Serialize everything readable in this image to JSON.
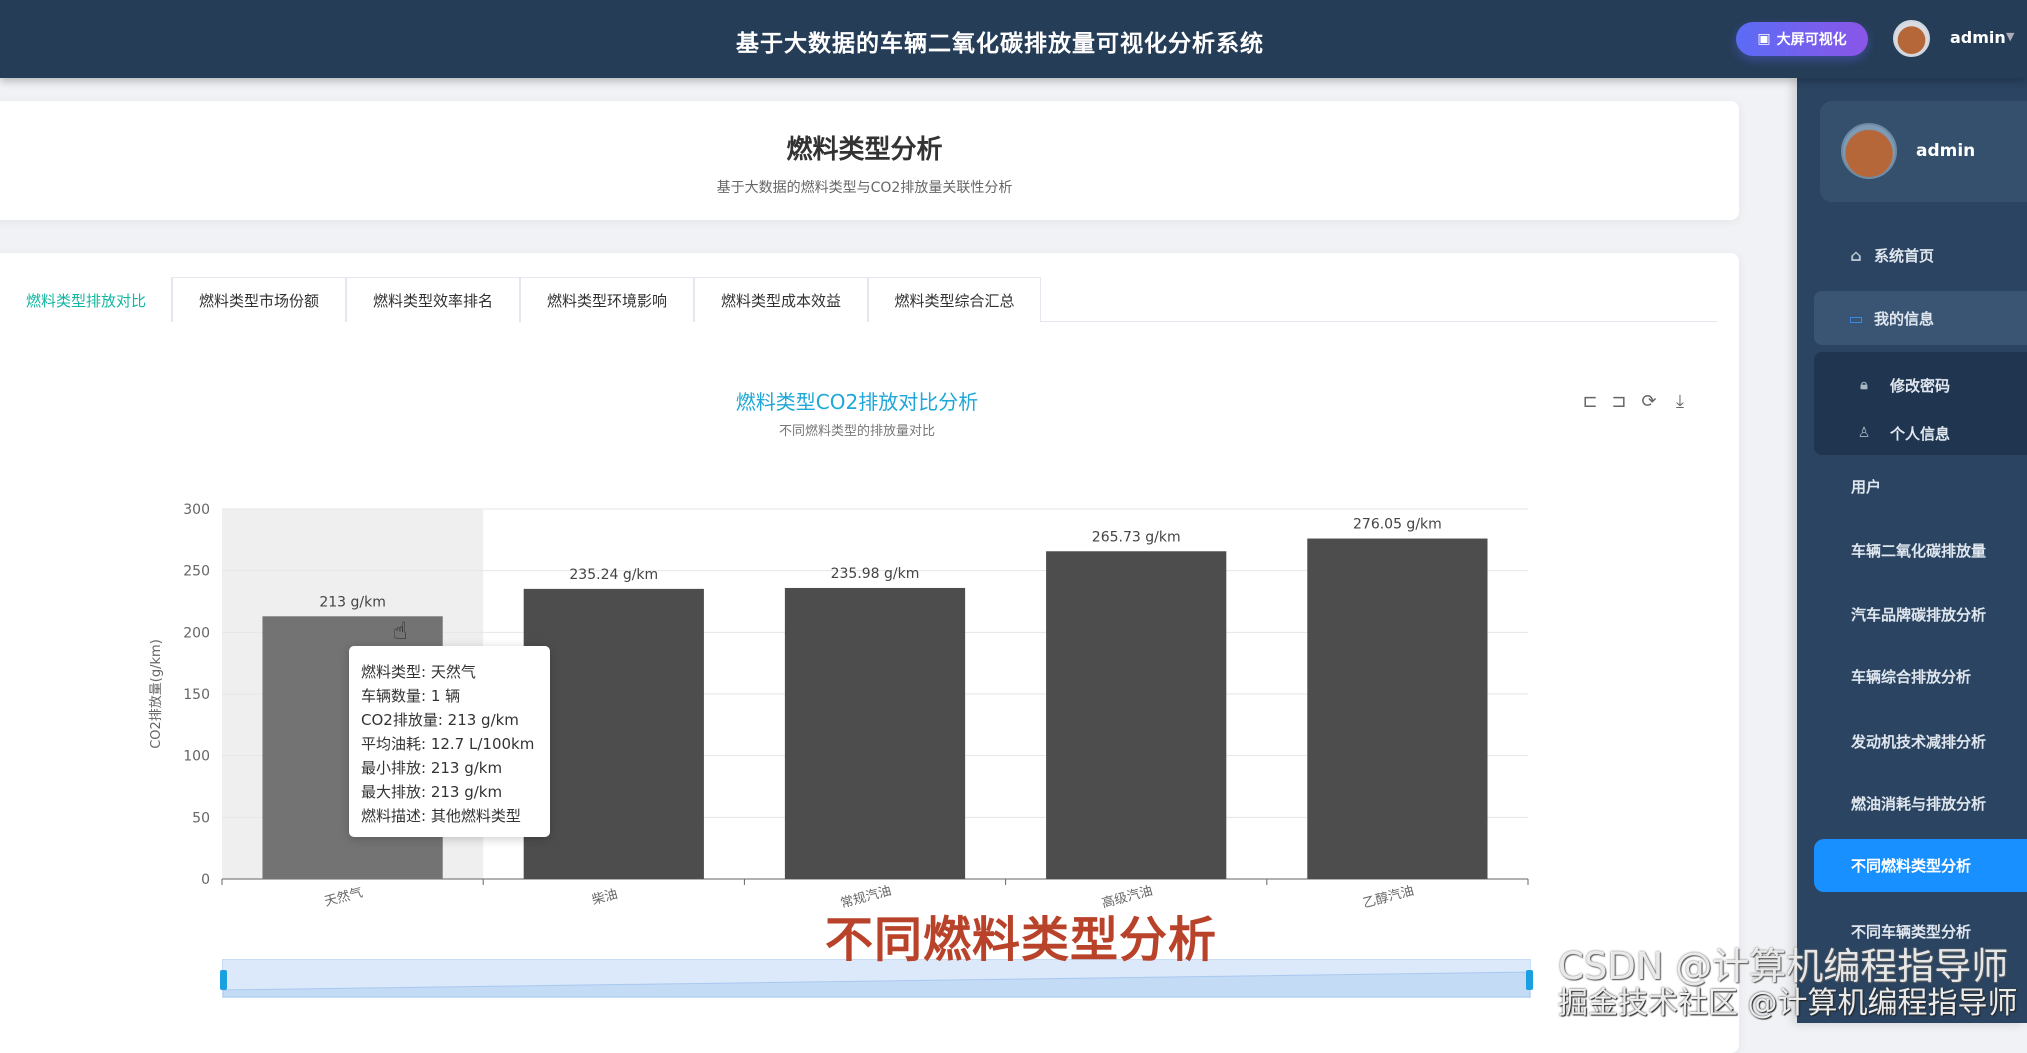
{
  "header": {
    "title": "基于大数据的车辆二氧化碳排放量可视化分析系统",
    "bigscreen_label": "大屏可视化",
    "username": "admin"
  },
  "page": {
    "title": "燃料类型分析",
    "subtitle": "基于大数据的燃料类型与CO2排放量关联性分析"
  },
  "tabs": [
    {
      "label": "燃料类型排放对比",
      "active": true
    },
    {
      "label": "燃料类型市场份额"
    },
    {
      "label": "燃料类型效率排名"
    },
    {
      "label": "燃料类型环境影响"
    },
    {
      "label": "燃料类型成本效益"
    },
    {
      "label": "燃料类型综合汇总"
    }
  ],
  "chart_data": {
    "type": "bar",
    "title": "燃料类型CO2排放对比分析",
    "subtitle": "不同燃料类型的排放量对比",
    "ylabel": "CO2排放量(g/km)",
    "ylim": [
      0,
      300
    ],
    "yticks": [
      "0",
      "50",
      "100",
      "150",
      "200",
      "250",
      "300"
    ],
    "categories": [
      "天然气",
      "柴油",
      "常规汽油",
      "高级汽油",
      "乙醇汽油"
    ],
    "values": [
      213,
      235.24,
      235.98,
      265.73,
      276.05
    ],
    "data_labels": [
      "213 g/km",
      "235.24 g/km",
      "235.98 g/km",
      "265.73 g/km",
      "276.05 g/km"
    ],
    "grid": true,
    "bar_color": "#4d4d4d",
    "hover_color": "#737373",
    "hovered_index": 0,
    "datazoom_range_percent": [
      0,
      100
    ]
  },
  "tooltip": {
    "lines": [
      "燃料类型: 天然气",
      "车辆数量: 1 辆",
      "CO2排放量: 213 g/km",
      "平均油耗: 12.7 L/100km",
      "最小排放: 213 g/km",
      "最大排放: 213 g/km",
      "燃料描述: 其他燃料类型"
    ]
  },
  "toolbox": [
    "zoom-icon",
    "zoom-reset-icon",
    "restore-icon",
    "download-icon"
  ],
  "overlay_caption": "不同燃料类型分析",
  "watermarks": [
    "CSDN @计算机编程指导师",
    "掘金技术社区 @计算机编程指导师"
  ],
  "sidebar": {
    "username": "admin",
    "items": [
      {
        "label": "系统首页",
        "icon": "home-icon"
      },
      {
        "label": "我的信息",
        "icon": "card-icon",
        "expanded": true
      },
      {
        "label": "修改密码",
        "icon": "lock-icon"
      },
      {
        "label": "个人信息",
        "icon": "user-icon"
      },
      {
        "label": "用户"
      },
      {
        "label": "车辆二氧化碳排放量"
      },
      {
        "label": "汽车品牌碳排放分析"
      },
      {
        "label": "车辆综合排放分析"
      },
      {
        "label": "发动机技术减排分析"
      },
      {
        "label": "燃油消耗与排放分析"
      },
      {
        "label": "不同燃料类型分析",
        "active": true
      },
      {
        "label": "不同车辆类型分析"
      }
    ]
  },
  "colors": {
    "header": "#263d57",
    "sidebar": "#2a4461",
    "accent": "#1890ff",
    "tab_active": "#13b5a0",
    "chart_title": "#1ea7d8"
  }
}
